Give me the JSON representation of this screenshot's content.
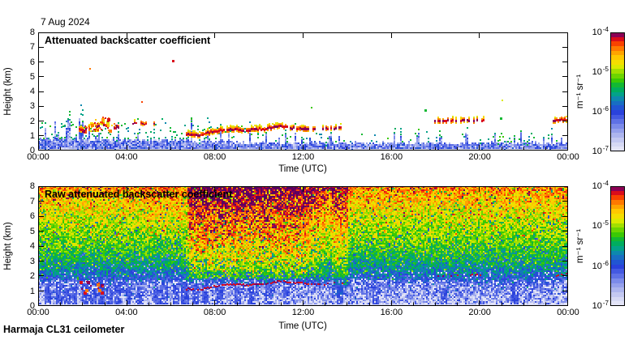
{
  "header": {
    "date_label": "7 Aug 2024"
  },
  "footer": {
    "instrument_label": "Harmaja CL31 ceilometer"
  },
  "panels": [
    {
      "title": "Attenuated backscatter coefficient",
      "xlabel": "Time (UTC)",
      "ylabel": "Height (km)",
      "x_tick_labels": [
        "00:00",
        "04:00",
        "08:00",
        "12:00",
        "16:00",
        "20:00",
        "00:00"
      ],
      "y_tick_labels": [
        "0",
        "1",
        "2",
        "3",
        "4",
        "5",
        "6",
        "7",
        "8"
      ]
    },
    {
      "title": "Raw attenuated backscatter coefficient",
      "xlabel": "Time (UTC)",
      "ylabel": "Height (km)",
      "x_tick_labels": [
        "00:00",
        "04:00",
        "08:00",
        "12:00",
        "16:00",
        "20:00",
        "00:00"
      ],
      "y_tick_labels": [
        "0",
        "1",
        "2",
        "3",
        "4",
        "5",
        "6",
        "7",
        "8"
      ]
    }
  ],
  "colorbar": {
    "tick_base": "10",
    "tick_exponents": [
      "-4",
      "-5",
      "-6",
      "-7"
    ],
    "unit": "m⁻¹ sr⁻¹"
  },
  "chart_data": {
    "type": "heatmap",
    "x_unit": "hours UTC",
    "x_range": [
      0,
      24
    ],
    "x_tick_hours": [
      0,
      4,
      8,
      12,
      16,
      20,
      24
    ],
    "y_unit": "km",
    "y_range": [
      0,
      8
    ],
    "value_scale": "log10",
    "value_range": [
      1e-07,
      0.0001
    ],
    "value_unit": "m-1 sr-1",
    "colormap_stops": [
      [
        0.0,
        "#e9e9f8"
      ],
      [
        0.07,
        "#d2d5f3"
      ],
      [
        0.14,
        "#aab2ee"
      ],
      [
        0.21,
        "#7d8cea"
      ],
      [
        0.27,
        "#5064e4"
      ],
      [
        0.33,
        "#2840dc"
      ],
      [
        0.38,
        "#1e5ecf"
      ],
      [
        0.44,
        "#0f86b0"
      ],
      [
        0.49,
        "#00a880"
      ],
      [
        0.54,
        "#00b048"
      ],
      [
        0.6,
        "#3ecb00"
      ],
      [
        0.66,
        "#8edd00"
      ],
      [
        0.72,
        "#e8ec00"
      ],
      [
        0.78,
        "#ffd000"
      ],
      [
        0.84,
        "#ff9800"
      ],
      [
        0.89,
        "#ff5a00"
      ],
      [
        0.93,
        "#ef1400"
      ],
      [
        0.965,
        "#b4004c"
      ],
      [
        1.0,
        "#5c0061"
      ]
    ],
    "panels": [
      {
        "name": "attenuated",
        "background": "white",
        "boundary_layer_top_km": [
          [
            0,
            0.8
          ],
          [
            2,
            0.75
          ],
          [
            6.5,
            0.72
          ],
          [
            10,
            0.52
          ],
          [
            24,
            0.5
          ]
        ],
        "cloud_segments": [
          {
            "pts": [
              [
                1.85,
                1.5
              ],
              [
                2.2,
                1.45
              ],
              [
                2.6,
                1.65
              ],
              [
                3.0,
                1.7
              ],
              [
                3.3,
                1.6
              ],
              [
                3.6,
                1.55
              ]
            ],
            "thick": 0.18,
            "gap": 0.55
          },
          {
            "pts": [
              [
                4.25,
                1.85
              ],
              [
                5.15,
                1.8
              ]
            ],
            "thick": 0.12,
            "gap": 0.35
          },
          {
            "pts": [
              [
                6.75,
                1.15
              ],
              [
                7.3,
                1.05
              ],
              [
                7.9,
                1.3
              ],
              [
                8.6,
                1.45
              ],
              [
                9.5,
                1.4
              ],
              [
                10.3,
                1.5
              ],
              [
                11.0,
                1.68
              ],
              [
                11.5,
                1.55
              ],
              [
                12.1,
                1.5
              ]
            ],
            "thick": 0.17,
            "gap": 0.06
          },
          {
            "pts": [
              [
                12.1,
                1.5
              ],
              [
                12.8,
                1.45
              ],
              [
                13.75,
                1.55
              ]
            ],
            "thick": 0.14,
            "gap": 0.5
          },
          {
            "pts": [
              [
                17.85,
                2.0
              ],
              [
                19.0,
                2.05
              ],
              [
                20.1,
                2.08
              ]
            ],
            "thick": 0.14,
            "gap": 0.45
          },
          {
            "pts": [
              [
                23.3,
                2.05
              ],
              [
                24.0,
                2.1
              ]
            ],
            "thick": 0.15,
            "gap": 0.12
          }
        ],
        "blobs": [
          {
            "t": [
              1.9,
              3.55
            ],
            "h": [
              1.35,
              1.9
            ],
            "count": 40,
            "frac": [
              0.68,
              1.0
            ]
          },
          {
            "t": [
              2.45,
              3.2
            ],
            "h": [
              1.75,
              2.35
            ],
            "count": 22,
            "frac": [
              0.7,
              0.98
            ]
          }
        ],
        "dots": [
          [
            6.05,
            6.15,
            0.93,
            3
          ],
          [
            2.3,
            5.6,
            0.85,
            2
          ],
          [
            4.65,
            3.35,
            0.9,
            2
          ],
          [
            21.0,
            3.45,
            0.73,
            2
          ],
          [
            12.35,
            2.95,
            0.6,
            2
          ],
          [
            17.5,
            2.8,
            0.55,
            3
          ],
          [
            20.9,
            2.25,
            0.55,
            3
          ],
          [
            16.15,
            1.55,
            0.5,
            2
          ],
          [
            19.4,
            1.6,
            0.52,
            2
          ],
          [
            22.3,
            1.2,
            0.5,
            2
          ]
        ]
      },
      {
        "name": "raw",
        "profile_log10": [
          [
            0,
            -6.9
          ],
          [
            0.15,
            -6.7
          ],
          [
            0.6,
            -6.5
          ],
          [
            1.3,
            -6.35
          ],
          [
            2.0,
            -5.85
          ],
          [
            3.0,
            -5.45
          ],
          [
            4.0,
            -5.2
          ],
          [
            5.5,
            -4.95
          ],
          [
            6.5,
            -4.75
          ],
          [
            8,
            -4.45
          ]
        ],
        "noise_amp": 0.33,
        "red_region": {
          "t": [
            6.6,
            13.3
          ],
          "h_min": 1.85,
          "boost": 0.8
        },
        "orange_column": {
          "t": [
            13.3,
            14.05
          ],
          "h_min": 1.4,
          "boost": 0.5
        },
        "white_speckle_below_km": 1.7,
        "streak_times": [
          0.4,
          0.9,
          1.3,
          1.6,
          2.1,
          2.45,
          2.8,
          3.2,
          3.55,
          4.1,
          4.6,
          5.3,
          5.65,
          6.2,
          6.6,
          7.1,
          7.5,
          8.2,
          9.0,
          9.6,
          10.4,
          11.2,
          13.6,
          15.2,
          18.3,
          21.5
        ],
        "cloud_segments": [
          {
            "pts": [
              [
                6.75,
                1.15
              ],
              [
                7.3,
                1.05
              ],
              [
                7.9,
                1.3
              ],
              [
                8.6,
                1.45
              ],
              [
                9.5,
                1.4
              ],
              [
                10.3,
                1.5
              ],
              [
                11.0,
                1.68
              ],
              [
                11.5,
                1.55
              ],
              [
                12.1,
                1.5
              ]
            ],
            "thick": 0.12,
            "gap": 0.15
          },
          {
            "pts": [
              [
                12.1,
                1.5
              ],
              [
                12.8,
                1.45
              ],
              [
                13.75,
                1.55
              ]
            ],
            "thick": 0.12,
            "gap": 0.55
          },
          {
            "pts": [
              [
                17.85,
                2.0
              ],
              [
                19.0,
                2.05
              ],
              [
                20.1,
                2.08
              ]
            ],
            "thick": 0.12,
            "gap": 0.7
          },
          {
            "pts": [
              [
                23.3,
                2.05
              ],
              [
                24.0,
                2.1
              ]
            ],
            "thick": 0.12,
            "gap": 0.35
          }
        ],
        "blobs": [
          {
            "t": [
              1.85,
              3.0
            ],
            "h": [
              0.95,
              1.75
            ],
            "count": 14,
            "frac": [
              0.85,
              0.98
            ]
          }
        ]
      }
    ]
  }
}
